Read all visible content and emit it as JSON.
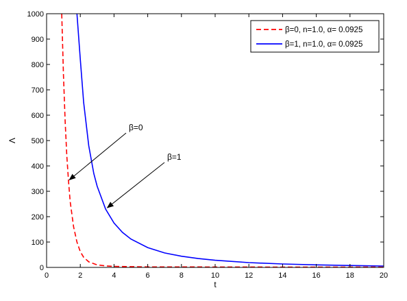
{
  "chart_data": {
    "type": "line",
    "title": "",
    "xlabel": "t",
    "ylabel": "Λ",
    "xlim": [
      0,
      20
    ],
    "ylim": [
      0,
      1000
    ],
    "xticks": [
      0,
      2,
      4,
      6,
      8,
      10,
      12,
      14,
      16,
      18,
      20
    ],
    "yticks": [
      0,
      100,
      200,
      300,
      400,
      500,
      600,
      700,
      800,
      900,
      1000
    ],
    "grid": false,
    "legend_position": "top-right",
    "series": [
      {
        "name": "β=0, n=1.0, α= 0.0925",
        "color": "#ff0000",
        "style": "dashed",
        "x": [
          0.9,
          1.0,
          1.1,
          1.2,
          1.3,
          1.4,
          1.6,
          1.8,
          2.0,
          2.2,
          2.5,
          3.0,
          3.5,
          4.0,
          5.0,
          6.0,
          8.0,
          10.0,
          12.0,
          14.0,
          16.0,
          18.0,
          20.0
        ],
        "y": [
          1000,
          760,
          575,
          440,
          340,
          260,
          160,
          100,
          62,
          40,
          22,
          10,
          6,
          4,
          3,
          2,
          2,
          1.5,
          1.5,
          1,
          1,
          1,
          1
        ]
      },
      {
        "name": "β=1, n=1.0, α= 0.0925",
        "color": "#0000ff",
        "style": "solid",
        "x": [
          1.8,
          2.0,
          2.2,
          2.5,
          2.8,
          3.0,
          3.5,
          4.0,
          4.5,
          5.0,
          6.0,
          7.0,
          8.0,
          9.0,
          10.0,
          12.0,
          14.0,
          16.0,
          18.0,
          20.0
        ],
        "y": [
          1000,
          820,
          650,
          480,
          370,
          320,
          230,
          175,
          138,
          112,
          78,
          57,
          44,
          35,
          28,
          19,
          13.5,
          10,
          7.5,
          5.5
        ]
      }
    ],
    "annotations": [
      {
        "text": "β=0",
        "arrow_to": [
          1.35,
          345
        ]
      },
      {
        "text": "β=1",
        "arrow_to": [
          3.6,
          235
        ]
      }
    ]
  }
}
